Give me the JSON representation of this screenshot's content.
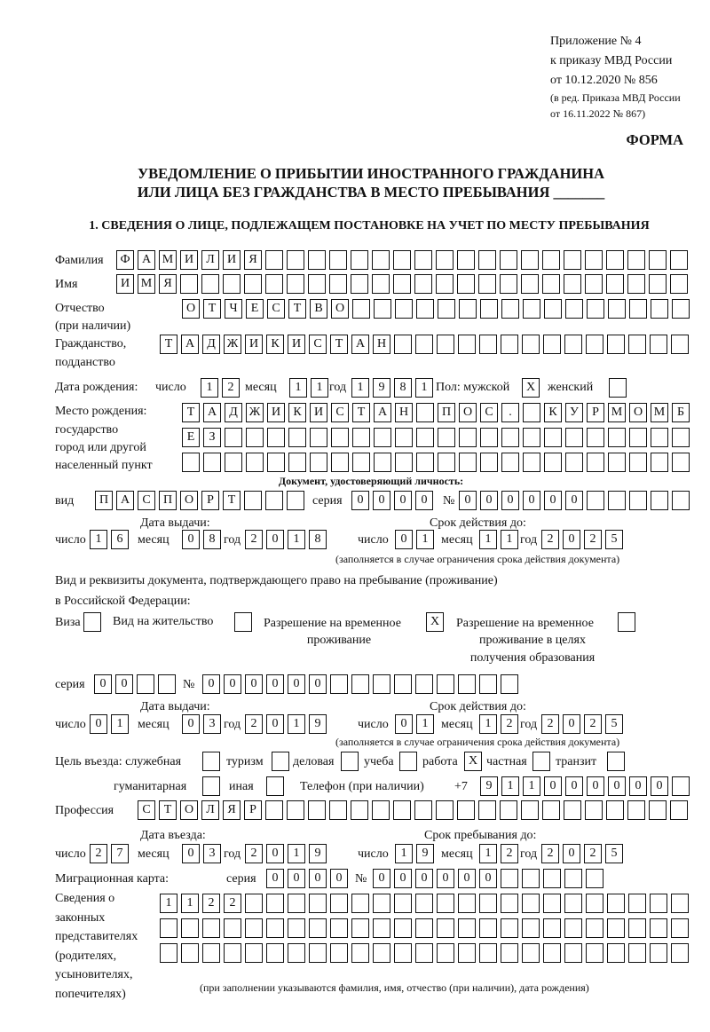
{
  "header": {
    "appendix": "Приложение № 4",
    "order": "к приказу МВД России",
    "order_date": "от 10.12.2020 № 856",
    "edition": "(в ред. Приказа МВД России",
    "edition_date": "от 16.11.2022 № 867)",
    "form_label": "ФОРМА"
  },
  "title": {
    "line1": "УВЕДОМЛЕНИЕ О ПРИБЫТИИ ИНОСТРАННОГО ГРАЖДАНИНА",
    "line2": "ИЛИ ЛИЦА БЕЗ ГРАЖДАНСТВА В МЕСТО ПРЕБЫВАНИЯ _______"
  },
  "section1": {
    "heading": "1. СВЕДЕНИЯ О ЛИЦЕ, ПОДЛЕЖАЩЕМ ПОСТАНОВКЕ НА УЧЕТ ПО МЕСТУ ПРЕБЫВАНИЯ",
    "surname": {
      "label": "Фамилия",
      "value": "ФАМИЛИЯ"
    },
    "name": {
      "label": "Имя",
      "value": "ИМЯ"
    },
    "patronymic": {
      "label": "Отчество",
      "label2": "(при наличии)",
      "value": "ОТЧЕСТВО"
    },
    "citizenship": {
      "label": "Гражданство,",
      "label2": "подданство",
      "value": "ТАДЖИКИСТАН"
    },
    "birth": {
      "label": "Дата рождения:",
      "day_label": "число",
      "month_label": "месяц",
      "year_label": "год",
      "day": "12",
      "month": "11",
      "year": "1981"
    },
    "sex": {
      "label": "Пол: мужской",
      "female_label": "женский",
      "male": "X",
      "female": ""
    },
    "birthplace": {
      "label": "Место рождения:",
      "label2": "государство",
      "label3": "город или другой",
      "label4": "населенный пункт",
      "line1": "ТАДЖИКИСТАН ПОС. КУРМОМБ",
      "line2": "ЕЗ",
      "line3": ""
    },
    "id_doc": {
      "heading": "Документ, удостоверяющий личность:",
      "kind_label": "вид",
      "kind": "ПАСПОРТ",
      "series_label": "серия",
      "series": "0000",
      "number_label": "№",
      "number": "000000",
      "issue_label": "Дата выдачи:",
      "valid_label": "Срок действия до:",
      "day_label": "число",
      "month_label": "месяц",
      "year_label": "год",
      "issue_day": "16",
      "issue_month": "08",
      "issue_year": "2018",
      "valid_day": "01",
      "valid_month": "11",
      "valid_year": "2025",
      "note": "(заполняется в случае ограничения срока действия документа)"
    },
    "stay_doc": {
      "label": "Вид и реквизиты документа, подтверждающего право на пребывание (проживание)",
      "label2": "в Российской Федерации:",
      "visa_label": "Виза",
      "visa": "",
      "residence_label": "Вид на жительство",
      "residence": "",
      "temp_label": "Разрешение на временное",
      "temp_label2": "проживание",
      "temp": "X",
      "edu_label": "Разрешение на временное",
      "edu_label2": "проживание в целях",
      "edu_label3": "получения образования",
      "edu": "",
      "series_label": "серия",
      "series": "00",
      "number_label": "№",
      "number": "000000",
      "issue_label": "Дата выдачи:",
      "valid_label": "Срок действия до:",
      "day_label": "число",
      "month_label": "месяц",
      "year_label": "год",
      "issue_day": "01",
      "issue_month": "03",
      "issue_year": "2019",
      "valid_day": "01",
      "valid_month": "12",
      "valid_year": "2025",
      "note": "(заполняется в случае ограничения срока действия документа)"
    },
    "purpose": {
      "label": "Цель въезда: служебная",
      "service": "",
      "tourism_label": "туризм",
      "tourism": "",
      "business_label": "деловая",
      "business": "",
      "study_label": "учеба",
      "study": "",
      "work_label": "работа",
      "work": "X",
      "private_label": "частная",
      "private": "",
      "transit_label": "транзит",
      "transit": "",
      "humanitarian_label": "гуманитарная",
      "humanitarian": "",
      "other_label": "иная",
      "other": ""
    },
    "phone": {
      "label": "Телефон (при наличии)",
      "prefix": "+7",
      "value": "911000000"
    },
    "profession": {
      "label": "Профессия",
      "value": "СТОЛЯР"
    },
    "entry": {
      "entry_label": "Дата въезда:",
      "stay_label": "Срок пребывания до:",
      "day_label": "число",
      "month_label": "месяц",
      "year_label": "год",
      "entry_day": "27",
      "entry_month": "03",
      "entry_year": "2019",
      "stay_day": "19",
      "stay_month": "12",
      "stay_year": "2025"
    },
    "migration_card": {
      "label": "Миграционная карта:",
      "series_label": "серия",
      "series": "0000",
      "number_label": "№",
      "number": "000000"
    },
    "representatives": {
      "labels": [
        "Сведения о",
        "законных",
        "представителях",
        "(родителях,",
        "усыновителях,",
        "попечителях)"
      ],
      "line1": "1122",
      "line2": "",
      "line3": "",
      "note": "(при заполнении указываются фамилия, имя, отчество (при наличии), дата рождения)"
    }
  }
}
